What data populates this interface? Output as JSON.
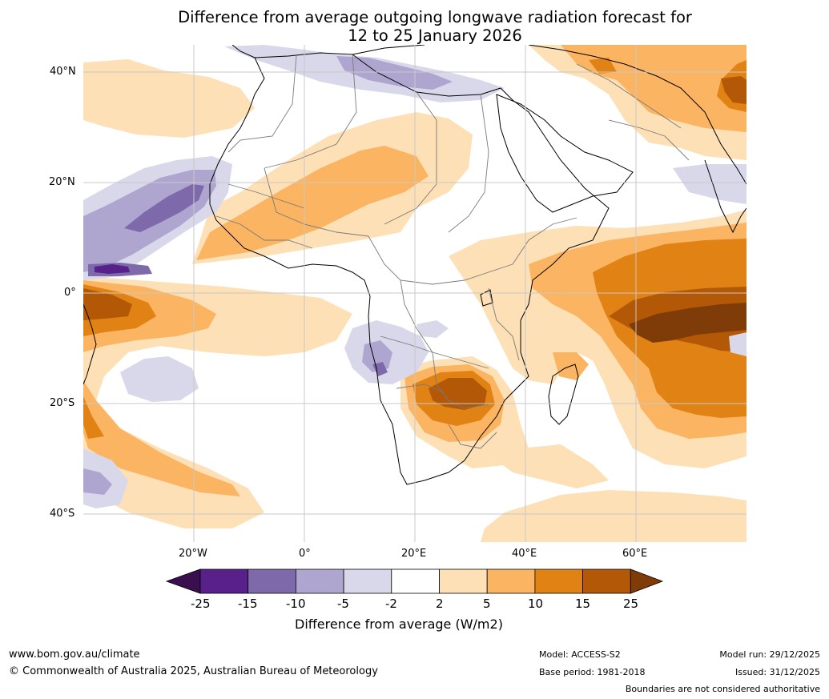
{
  "title": {
    "line1": "Difference from average outgoing longwave radiation forecast for",
    "line2": "12 to 25 January 2026"
  },
  "map": {
    "lat_ticks": [
      "40°N",
      "20°N",
      "0°",
      "20°S",
      "40°S"
    ],
    "lon_ticks": [
      "20°W",
      "0°",
      "20°E",
      "40°E",
      "60°E"
    ],
    "extent": {
      "lon_min": -40,
      "lon_max": 80,
      "lat_min": -45,
      "lat_max": 45
    }
  },
  "legend": {
    "ticks": [
      "-25",
      "-15",
      "-10",
      "-5",
      "-2",
      "2",
      "5",
      "10",
      "15",
      "25"
    ],
    "colors": [
      "#3b0f4f",
      "#58208a",
      "#7e6aab",
      "#afa6d0",
      "#d8d8ea",
      "#ffffff",
      "#fde0b6",
      "#fbb461",
      "#e08214",
      "#b35806",
      "#7f3b08"
    ],
    "title": "Difference from average (W/m2)"
  },
  "footer": {
    "website": "www.bom.gov.au/climate",
    "copyright": "© Commonwealth of Australia 2025, Australian Bureau of Meteorology",
    "model": "Model: ACCESS-S2",
    "base_period": "Base period: 1981-2018",
    "model_run": "Model run: 29/12/2025",
    "issued": "Issued: 31/12/2025",
    "disclaimer": "Boundaries are not considered authoritative"
  }
}
